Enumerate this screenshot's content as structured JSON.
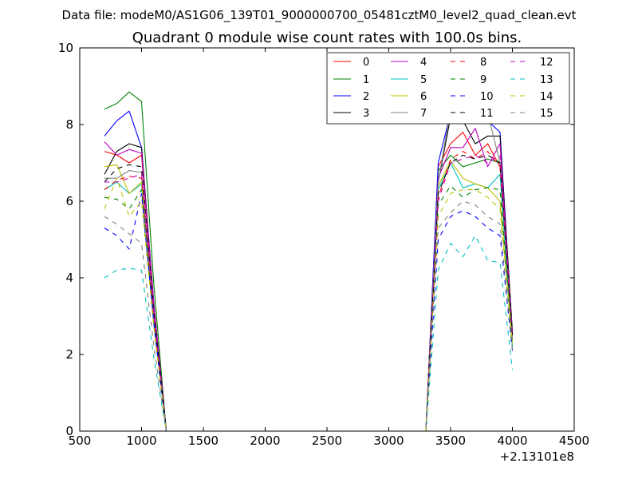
{
  "chart_data": {
    "type": "line",
    "suptitle": "Data file: modeM0/AS1G06_139T01_9000000700_05481cztM0_level2_quad_clean.evt",
    "title": "Quadrant 0 module wise count rates with 100.0s bins.",
    "xlabel": "",
    "ylabel": "",
    "x_offset_label": "+2.13101e8",
    "xlim": [
      500,
      4500
    ],
    "ylim": [
      0,
      10
    ],
    "xticks": [
      500,
      1000,
      1500,
      2000,
      2500,
      3000,
      3500,
      4000,
      4500
    ],
    "yticks": [
      0,
      2,
      4,
      6,
      8,
      10
    ],
    "grid": false,
    "legend_position": "top-right",
    "x": [
      700,
      800,
      900,
      1000,
      1100,
      1200,
      1300,
      1400,
      1500,
      1600,
      1700,
      1800,
      1900,
      2000,
      2100,
      2200,
      2300,
      2400,
      2500,
      2600,
      2700,
      2800,
      2900,
      3000,
      3100,
      3200,
      3300,
      3400,
      3500,
      3600,
      3700,
      3800,
      3900,
      4000
    ],
    "series": [
      {
        "name": "0",
        "color": "#ff0000",
        "dash": "solid",
        "values": [
          7.3,
          7.2,
          7.0,
          7.2,
          3.2,
          0,
          0,
          0,
          0,
          0,
          0,
          0,
          0,
          0,
          0,
          0,
          0,
          0,
          0,
          0,
          0,
          0,
          0,
          0,
          0,
          0,
          0,
          6.9,
          7.5,
          7.8,
          7.2,
          7.5,
          6.9,
          2.5
        ]
      },
      {
        "name": "1",
        "color": "#008000",
        "dash": "solid",
        "values": [
          8.4,
          8.55,
          8.85,
          8.6,
          3.8,
          0,
          0,
          0,
          0,
          0,
          0,
          0,
          0,
          0,
          0,
          0,
          0,
          0,
          0,
          0,
          0,
          0,
          0,
          0,
          0,
          0,
          0,
          6.8,
          7.2,
          6.9,
          7.0,
          7.1,
          7.0,
          2.4
        ]
      },
      {
        "name": "2",
        "color": "#0000ff",
        "dash": "solid",
        "values": [
          7.7,
          8.1,
          8.35,
          7.4,
          3.3,
          0,
          0,
          0,
          0,
          0,
          0,
          0,
          0,
          0,
          0,
          0,
          0,
          0,
          0,
          0,
          0,
          0,
          0,
          0,
          0,
          0,
          0,
          7.0,
          8.3,
          8.5,
          8.4,
          8.1,
          7.8,
          2.5
        ]
      },
      {
        "name": "3",
        "color": "#000000",
        "dash": "solid",
        "values": [
          6.7,
          7.3,
          7.5,
          7.4,
          3.3,
          0,
          0,
          0,
          0,
          0,
          0,
          0,
          0,
          0,
          0,
          0,
          0,
          0,
          0,
          0,
          0,
          0,
          0,
          0,
          0,
          0,
          0,
          6.5,
          8.2,
          8.1,
          7.5,
          7.7,
          7.7,
          2.6
        ]
      },
      {
        "name": "4",
        "color": "#bf00bf",
        "dash": "solid",
        "values": [
          7.55,
          7.2,
          7.35,
          7.25,
          3.3,
          0,
          0,
          0,
          0,
          0,
          0,
          0,
          0,
          0,
          0,
          0,
          0,
          0,
          0,
          0,
          0,
          0,
          0,
          0,
          0,
          0,
          0,
          6.6,
          7.4,
          7.4,
          7.9,
          6.9,
          7.5,
          2.4
        ]
      },
      {
        "name": "5",
        "color": "#00bfbf",
        "dash": "solid",
        "values": [
          6.3,
          6.5,
          6.2,
          6.45,
          2.8,
          0,
          0,
          0,
          0,
          0,
          0,
          0,
          0,
          0,
          0,
          0,
          0,
          0,
          0,
          0,
          0,
          0,
          0,
          0,
          0,
          0,
          0,
          6.3,
          7.0,
          6.35,
          6.45,
          6.35,
          6.7,
          2.2
        ]
      },
      {
        "name": "6",
        "color": "#bfbf00",
        "dash": "solid",
        "values": [
          6.9,
          6.95,
          6.2,
          6.5,
          2.9,
          0,
          0,
          0,
          0,
          0,
          0,
          0,
          0,
          0,
          0,
          0,
          0,
          0,
          0,
          0,
          0,
          0,
          0,
          0,
          0,
          0,
          0,
          6.4,
          7.05,
          6.6,
          6.45,
          6.35,
          6.0,
          2.3
        ]
      },
      {
        "name": "7",
        "color": "#808080",
        "dash": "solid",
        "values": [
          6.6,
          6.6,
          6.8,
          6.75,
          3.0,
          0,
          0,
          0,
          0,
          0,
          0,
          0,
          0,
          0,
          0,
          0,
          0,
          0,
          0,
          0,
          0,
          0,
          0,
          0,
          0,
          0,
          0,
          6.5,
          8.4,
          8.2,
          8.2,
          8.3,
          7.0,
          2.4
        ]
      },
      {
        "name": "8",
        "color": "#ff0000",
        "dash": "dashed",
        "values": [
          6.3,
          6.55,
          6.65,
          6.6,
          3.0,
          0,
          0,
          0,
          0,
          0,
          0,
          0,
          0,
          0,
          0,
          0,
          0,
          0,
          0,
          0,
          0,
          0,
          0,
          0,
          0,
          0,
          0,
          6.1,
          7.1,
          7.3,
          7.1,
          7.3,
          6.9,
          2.5
        ]
      },
      {
        "name": "9",
        "color": "#008000",
        "dash": "dashed",
        "values": [
          6.1,
          6.05,
          5.8,
          6.3,
          2.8,
          0,
          0,
          0,
          0,
          0,
          0,
          0,
          0,
          0,
          0,
          0,
          0,
          0,
          0,
          0,
          0,
          0,
          0,
          0,
          0,
          0,
          0,
          5.9,
          6.4,
          6.1,
          6.3,
          6.35,
          6.3,
          2.2
        ]
      },
      {
        "name": "10",
        "color": "#0000ff",
        "dash": "dashed",
        "values": [
          5.3,
          5.1,
          4.75,
          6.2,
          2.8,
          0,
          0,
          0,
          0,
          0,
          0,
          0,
          0,
          0,
          0,
          0,
          0,
          0,
          0,
          0,
          0,
          0,
          0,
          0,
          0,
          0,
          0,
          5.0,
          5.6,
          5.75,
          5.6,
          5.3,
          5.1,
          2.1
        ]
      },
      {
        "name": "11",
        "color": "#000000",
        "dash": "dashed",
        "values": [
          6.5,
          6.85,
          6.95,
          6.9,
          3.1,
          0,
          0,
          0,
          0,
          0,
          0,
          0,
          0,
          0,
          0,
          0,
          0,
          0,
          0,
          0,
          0,
          0,
          0,
          0,
          0,
          0,
          0,
          6.2,
          7.0,
          7.2,
          7.1,
          7.2,
          7.0,
          2.5
        ]
      },
      {
        "name": "12",
        "color": "#bf00bf",
        "dash": "dashed",
        "values": [
          6.5,
          6.5,
          6.6,
          6.7,
          3.0,
          0,
          0,
          0,
          0,
          0,
          0,
          0,
          0,
          0,
          0,
          0,
          0,
          0,
          0,
          0,
          0,
          0,
          0,
          0,
          0,
          0,
          0,
          6.0,
          7.0,
          7.1,
          7.2,
          7.0,
          7.2,
          2.5
        ]
      },
      {
        "name": "13",
        "color": "#00bfbf",
        "dash": "dashed",
        "values": [
          4.0,
          4.2,
          4.25,
          4.2,
          1.9,
          0,
          0,
          0,
          0,
          0,
          0,
          0,
          0,
          0,
          0,
          0,
          0,
          0,
          0,
          0,
          0,
          0,
          0,
          0,
          0,
          0,
          0,
          4.2,
          4.9,
          4.55,
          5.1,
          4.45,
          4.4,
          1.6
        ]
      },
      {
        "name": "14",
        "color": "#bfbf00",
        "dash": "dashed",
        "values": [
          5.8,
          6.6,
          5.6,
          6.0,
          2.7,
          0,
          0,
          0,
          0,
          0,
          0,
          0,
          0,
          0,
          0,
          0,
          0,
          0,
          0,
          0,
          0,
          0,
          0,
          0,
          0,
          0,
          0,
          5.6,
          6.2,
          6.3,
          6.3,
          6.1,
          5.8,
          2.3
        ]
      },
      {
        "name": "15",
        "color": "#808080",
        "dash": "dashed",
        "values": [
          5.6,
          5.4,
          5.15,
          4.9,
          2.2,
          0,
          0,
          0,
          0,
          0,
          0,
          0,
          0,
          0,
          0,
          0,
          0,
          0,
          0,
          0,
          0,
          0,
          0,
          0,
          0,
          0,
          0,
          5.3,
          5.7,
          6.0,
          5.9,
          5.6,
          5.4,
          2.1
        ]
      }
    ]
  }
}
